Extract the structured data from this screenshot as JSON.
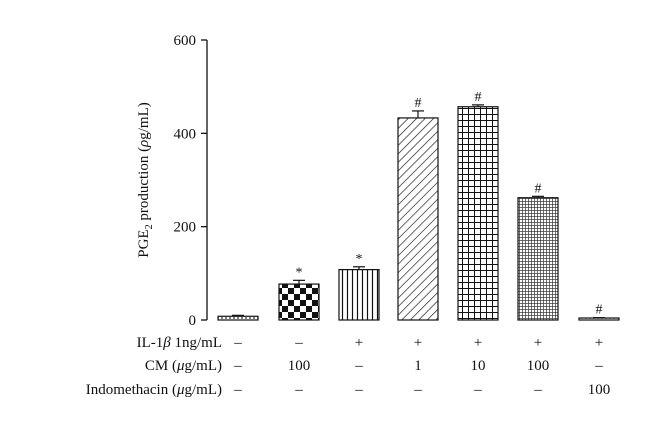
{
  "chart_data": {
    "type": "bar",
    "title": "",
    "ylabel_parts": {
      "a": "PGE",
      "sub": "2",
      "b": " production (",
      "rho": "ρ",
      "c": "g/mL)"
    },
    "ylim": [
      0,
      600
    ],
    "yticks": [
      0,
      200,
      400,
      600
    ],
    "bars": [
      {
        "value": 8,
        "error": 2,
        "pattern": "dots",
        "mark": ""
      },
      {
        "value": 77,
        "error": 8,
        "pattern": "checker",
        "mark": "*"
      },
      {
        "value": 108,
        "error": 6,
        "pattern": "vlines",
        "mark": "*"
      },
      {
        "value": 433,
        "error": 15,
        "pattern": "diag",
        "mark": "#"
      },
      {
        "value": 457,
        "error": 4,
        "pattern": "grid",
        "mark": "#"
      },
      {
        "value": 262,
        "error": 3,
        "pattern": "finegrid",
        "mark": "#"
      },
      {
        "value": 4,
        "error": 1,
        "pattern": "dots",
        "mark": "#"
      }
    ],
    "conditions": [
      {
        "label_parts": {
          "a": "IL-1",
          "beta": "β",
          "b": " 1ng/mL"
        },
        "values": [
          "–",
          "–",
          "+",
          "+",
          "+",
          "+",
          "+"
        ]
      },
      {
        "label_parts": {
          "a": "CM (",
          "mu": "μ",
          "b": "g/mL)"
        },
        "values": [
          "–",
          "100",
          "–",
          "1",
          "10",
          "100",
          "–"
        ]
      },
      {
        "label_parts": {
          "a": "Indomethacin (",
          "mu": "μ",
          "b": "g/mL)"
        },
        "values": [
          "–",
          "–",
          "–",
          "–",
          "–",
          "–",
          "100"
        ]
      }
    ],
    "grid": false,
    "legend": "none"
  }
}
